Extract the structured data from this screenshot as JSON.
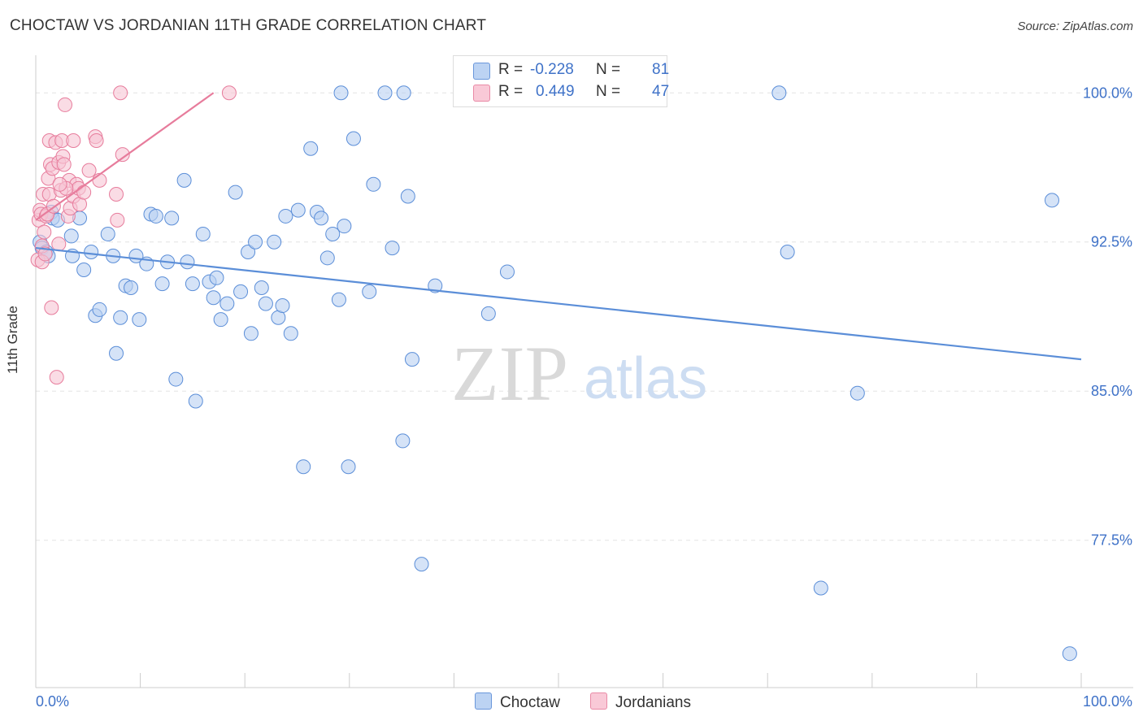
{
  "title": "CHOCTAW VS JORDANIAN 11TH GRADE CORRELATION CHART",
  "source": "Source: ZipAtlas.com",
  "watermark": {
    "zip": "ZIP",
    "atlas": "atlas"
  },
  "legend": {
    "rows": [
      {
        "r_label": "R =",
        "r_value": "-0.228",
        "n_label": "N =",
        "n_value": "81",
        "color": "#aac6ee",
        "border": "#5e8fd6"
      },
      {
        "r_label": "R =",
        "r_value": "0.449",
        "n_label": "N =",
        "n_value": "47",
        "color": "#f7bccd",
        "border": "#e8809f"
      }
    ]
  },
  "bottom_legend": [
    "Choctaw",
    "Jordanians"
  ],
  "chart_data": {
    "type": "scatter",
    "title": "CHOCTAW VS JORDANIAN 11TH GRADE CORRELATION CHART",
    "xlabel": "",
    "ylabel": "11th Grade",
    "xlim": [
      0,
      100
    ],
    "ylim": [
      70.5,
      101.4
    ],
    "x_tick_labels": [
      "0.0%",
      "100.0%"
    ],
    "y_ticks": [
      100.0,
      92.5,
      85.0,
      77.5
    ],
    "y_tick_labels": [
      "100.0%",
      "92.5%",
      "85.0%",
      "77.5%"
    ],
    "grid": true,
    "series": [
      {
        "name": "Choctaw",
        "color": "#5b8ed8",
        "fill": "#b9d0f2",
        "trend": {
          "x": [
            0,
            100
          ],
          "y": [
            92.2,
            86.6
          ]
        },
        "points": [
          [
            0.4,
            92.5
          ],
          [
            0.6,
            92.2
          ],
          [
            1.0,
            92.0
          ],
          [
            1.2,
            91.8
          ],
          [
            1.5,
            94.0
          ],
          [
            1.6,
            93.7
          ],
          [
            2.1,
            93.6
          ],
          [
            3.4,
            92.8
          ],
          [
            3.5,
            91.8
          ],
          [
            4.2,
            93.7
          ],
          [
            4.6,
            91.1
          ],
          [
            5.3,
            92.0
          ],
          [
            5.7,
            88.8
          ],
          [
            6.1,
            89.1
          ],
          [
            6.9,
            92.9
          ],
          [
            7.4,
            91.8
          ],
          [
            7.7,
            86.9
          ],
          [
            8.1,
            88.7
          ],
          [
            8.6,
            90.3
          ],
          [
            9.1,
            90.2
          ],
          [
            9.6,
            91.8
          ],
          [
            9.9,
            88.6
          ],
          [
            10.6,
            91.4
          ],
          [
            11.0,
            93.9
          ],
          [
            11.5,
            93.8
          ],
          [
            12.1,
            90.4
          ],
          [
            12.6,
            91.5
          ],
          [
            13.0,
            93.7
          ],
          [
            13.4,
            85.6
          ],
          [
            14.2,
            95.6
          ],
          [
            14.5,
            91.5
          ],
          [
            15.0,
            90.4
          ],
          [
            15.3,
            84.5
          ],
          [
            16.0,
            92.9
          ],
          [
            16.6,
            90.5
          ],
          [
            17.0,
            89.7
          ],
          [
            17.3,
            90.7
          ],
          [
            17.7,
            88.6
          ],
          [
            18.3,
            89.4
          ],
          [
            19.1,
            95.0
          ],
          [
            19.6,
            90.0
          ],
          [
            20.3,
            92.0
          ],
          [
            20.6,
            87.9
          ],
          [
            21.0,
            92.5
          ],
          [
            21.6,
            90.2
          ],
          [
            22.0,
            89.4
          ],
          [
            22.8,
            92.5
          ],
          [
            23.2,
            88.7
          ],
          [
            23.6,
            89.3
          ],
          [
            23.9,
            93.8
          ],
          [
            24.4,
            87.9
          ],
          [
            25.1,
            94.1
          ],
          [
            25.6,
            81.2
          ],
          [
            26.3,
            97.2
          ],
          [
            26.9,
            94.0
          ],
          [
            27.3,
            93.7
          ],
          [
            27.9,
            91.7
          ],
          [
            28.4,
            92.9
          ],
          [
            29.0,
            89.6
          ],
          [
            29.5,
            93.3
          ],
          [
            29.9,
            81.2
          ],
          [
            30.4,
            97.7
          ],
          [
            31.9,
            90.0
          ],
          [
            32.3,
            95.4
          ],
          [
            34.1,
            92.2
          ],
          [
            35.1,
            82.5
          ],
          [
            35.6,
            94.8
          ],
          [
            36.0,
            86.6
          ],
          [
            36.9,
            76.3
          ],
          [
            38.2,
            90.3
          ],
          [
            43.3,
            88.9
          ],
          [
            45.1,
            91.0
          ],
          [
            71.9,
            92.0
          ],
          [
            75.1,
            75.1
          ],
          [
            78.6,
            84.9
          ],
          [
            97.2,
            94.6
          ],
          [
            98.9,
            71.8
          ],
          [
            29.2,
            100.0
          ],
          [
            33.4,
            100.0
          ],
          [
            35.2,
            100.0
          ],
          [
            71.1,
            100.0
          ]
        ]
      },
      {
        "name": "Jordanians",
        "color": "#e77c9c",
        "fill": "#f7c4d3",
        "trend": {
          "x": [
            0,
            17
          ],
          "y": [
            93.6,
            100.0
          ]
        },
        "points": [
          [
            0.2,
            91.6
          ],
          [
            0.3,
            93.6
          ],
          [
            0.4,
            94.1
          ],
          [
            0.5,
            93.9
          ],
          [
            0.6,
            91.5
          ],
          [
            0.7,
            94.9
          ],
          [
            0.8,
            93.0
          ],
          [
            1.0,
            93.8
          ],
          [
            1.2,
            95.7
          ],
          [
            1.3,
            94.9
          ],
          [
            1.3,
            97.6
          ],
          [
            1.4,
            96.4
          ],
          [
            1.5,
            89.2
          ],
          [
            1.6,
            96.2
          ],
          [
            1.9,
            97.5
          ],
          [
            2.0,
            85.7
          ],
          [
            2.2,
            92.4
          ],
          [
            2.2,
            96.5
          ],
          [
            2.4,
            95.1
          ],
          [
            2.5,
            97.6
          ],
          [
            2.6,
            96.8
          ],
          [
            2.7,
            96.4
          ],
          [
            2.8,
            99.4
          ],
          [
            3.1,
            93.8
          ],
          [
            3.2,
            95.6
          ],
          [
            3.3,
            94.2
          ],
          [
            3.6,
            97.6
          ],
          [
            3.6,
            94.8
          ],
          [
            3.9,
            95.4
          ],
          [
            4.1,
            95.2
          ],
          [
            4.2,
            94.4
          ],
          [
            4.6,
            95.0
          ],
          [
            5.1,
            96.1
          ],
          [
            5.7,
            97.8
          ],
          [
            5.8,
            97.6
          ],
          [
            6.1,
            95.6
          ],
          [
            7.7,
            94.9
          ],
          [
            7.8,
            93.6
          ],
          [
            8.3,
            96.9
          ],
          [
            8.1,
            100.0
          ],
          [
            18.5,
            100.0
          ],
          [
            0.6,
            92.3
          ],
          [
            1.1,
            93.9
          ],
          [
            2.9,
            95.2
          ],
          [
            0.9,
            91.9
          ],
          [
            1.7,
            94.3
          ],
          [
            2.3,
            95.4
          ]
        ]
      }
    ]
  }
}
